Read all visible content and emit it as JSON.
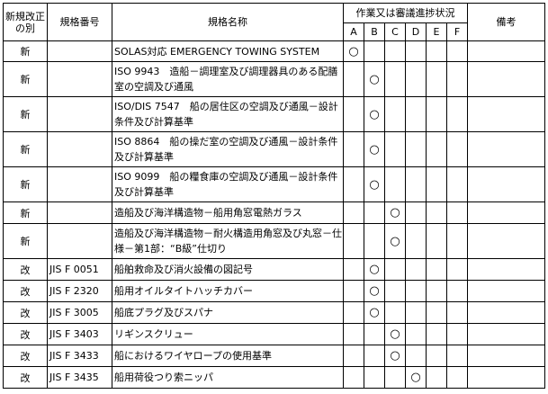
{
  "header": {
    "kind": "新規改正の別",
    "number": "規格番号",
    "name": "規格名称",
    "status": "作業又は審議進捗状況",
    "stages": [
      "A",
      "B",
      "C",
      "D",
      "E",
      "F"
    ],
    "notes": "備考"
  },
  "mark": "○",
  "rows": [
    {
      "kind": "新",
      "number": "",
      "name": "SOLAS対応 EMERGENCY TOWING SYSTEM",
      "stage": "A"
    },
    {
      "kind": "新",
      "number": "",
      "name": "ISO 9943　造船－調理室及び調理器具のある配膳室の空調及び通風",
      "stage": "B"
    },
    {
      "kind": "新",
      "number": "",
      "name": "ISO/DIS 7547　船の居住区の空調及び通風－設計条件及び計算基準",
      "stage": "B"
    },
    {
      "kind": "新",
      "number": "",
      "name": "ISO 8864　船の操だ室の空調及び通風－設計条件及び計算基準",
      "stage": "B"
    },
    {
      "kind": "新",
      "number": "",
      "name": "ISO 9099　船の糧食庫の空調及び通風－設計条件及び計算基準",
      "stage": "B"
    },
    {
      "kind": "新",
      "number": "",
      "name": "造船及び海洋構造物－船用角窓電熱ガラス",
      "stage": "C"
    },
    {
      "kind": "新",
      "number": "",
      "name": "造船及び海洋構造物－耐火構造用角窓及び丸窓－仕様－第1部：“B級”仕切り",
      "stage": "C"
    },
    {
      "kind": "改",
      "number": "JIS F 0051",
      "name": "船舶救命及び消火設備の図記号",
      "stage": "B"
    },
    {
      "kind": "改",
      "number": "JIS F 2320",
      "name": "船用オイルタイトハッチカバー",
      "stage": "B"
    },
    {
      "kind": "改",
      "number": "JIS F 3005",
      "name": "船底プラグ及びスパナ",
      "stage": "B"
    },
    {
      "kind": "改",
      "number": "JIS F 3403",
      "name": "リギンスクリュー",
      "stage": "C"
    },
    {
      "kind": "改",
      "number": "JIS F 3433",
      "name": "船におけるワイヤロープの使用基準",
      "stage": "C"
    },
    {
      "kind": "改",
      "number": "JIS F 3435",
      "name": "船用荷役つり索ニッパ",
      "stage": "D"
    }
  ]
}
